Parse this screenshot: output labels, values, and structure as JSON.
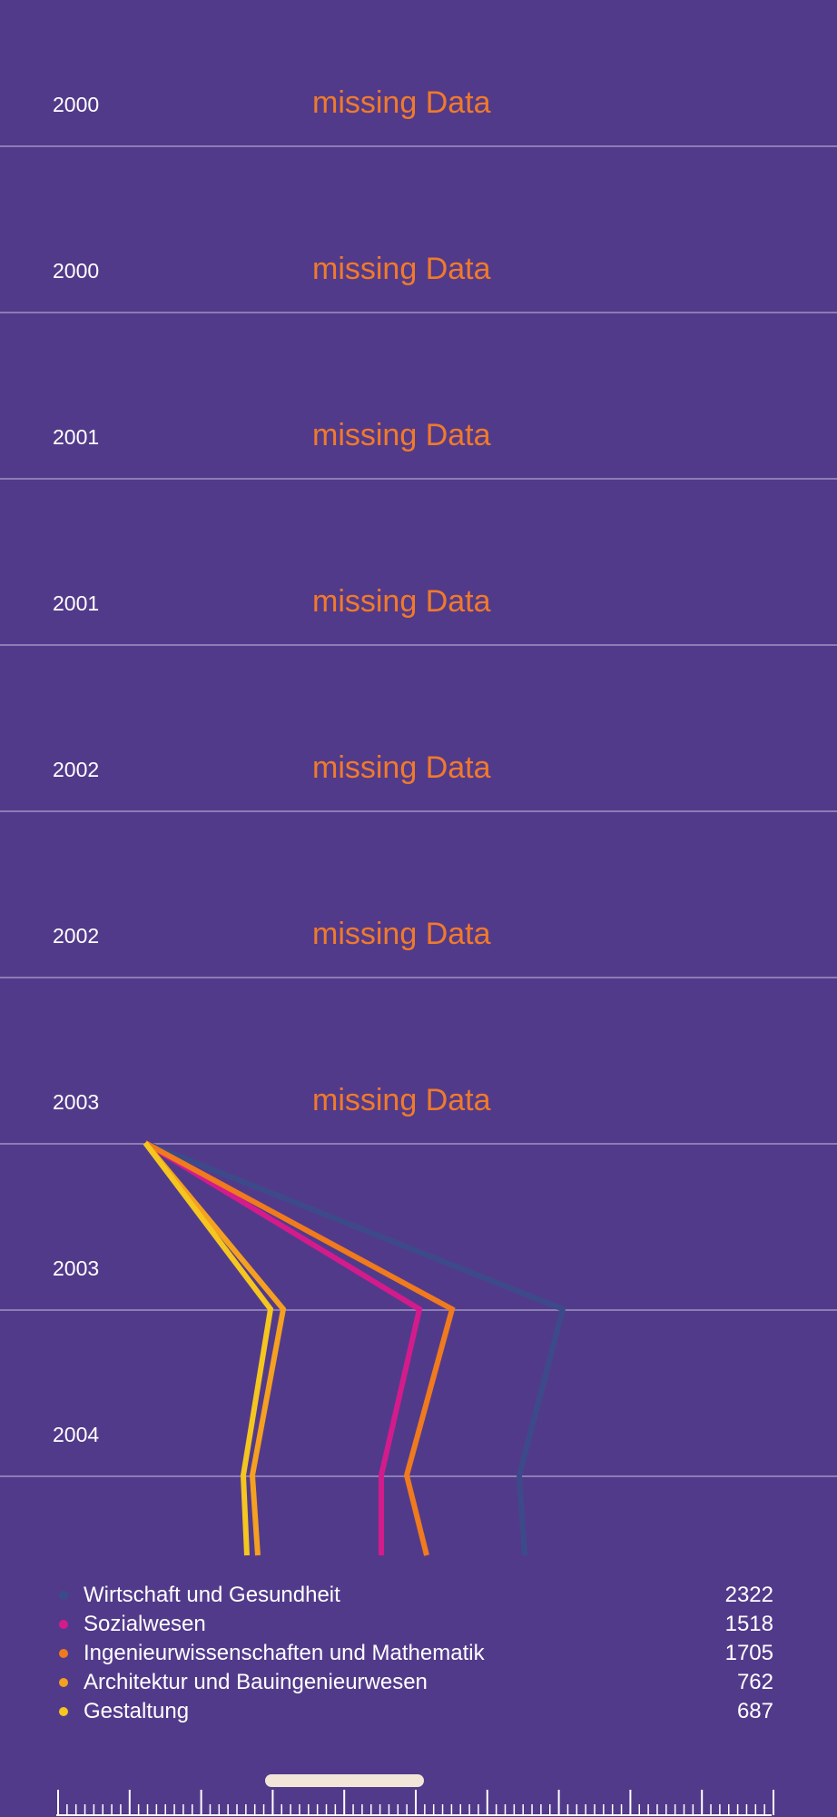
{
  "rows": [
    {
      "year": "2000",
      "note": "missing Data"
    },
    {
      "year": "2000",
      "note": "missing Data"
    },
    {
      "year": "2001",
      "note": "missing Data"
    },
    {
      "year": "2001",
      "note": "missing Data"
    },
    {
      "year": "2002",
      "note": "missing Data"
    },
    {
      "year": "2002",
      "note": "missing Data"
    },
    {
      "year": "2003",
      "note": "missing Data"
    },
    {
      "year": "2003",
      "note": ""
    },
    {
      "year": "2004",
      "note": ""
    }
  ],
  "chart_data": {
    "type": "line",
    "series": [
      {
        "name": "Wirtschaft und Gesundheit",
        "color": "#3D4A8A",
        "value": 2322
      },
      {
        "name": "Sozialwesen",
        "color": "#D41B8C",
        "value": 1518
      },
      {
        "name": "Ingenieurwissenschaften und Mathematik",
        "color": "#F07A1E",
        "value": 1705
      },
      {
        "name": "Architektur und Bauingenieurwesen",
        "color": "#F4A020",
        "value": 762
      },
      {
        "name": "Gestaltung",
        "color": "#F4C61F",
        "value": 687
      }
    ]
  },
  "colors": {
    "background": "#523A8B",
    "row_line": "#8C7DB5",
    "missing_text": "#F07A2A"
  }
}
